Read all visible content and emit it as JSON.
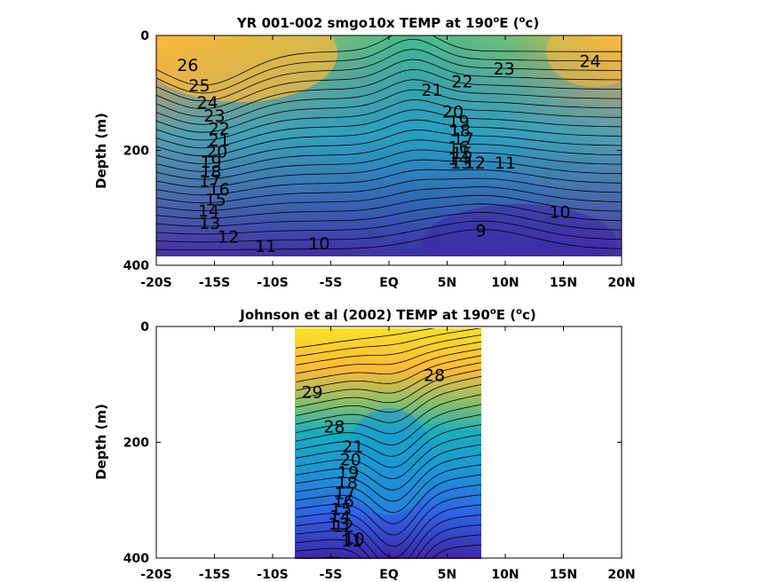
{
  "chart_data": [
    {
      "type": "contour",
      "title": "YR 001-002 smgo10x TEMP at 190",
      "title_unit": "E (",
      "title_unit_end": "c)",
      "ylabel": "Depth (m)",
      "xlim": [
        -20,
        20
      ],
      "ylim": [
        400,
        0
      ],
      "data_extent": {
        "x": [
          -20,
          20
        ],
        "depth": [
          0,
          385
        ]
      },
      "x_ticks": [
        -20,
        -15,
        -10,
        -5,
        0,
        5,
        10,
        15,
        20
      ],
      "x_tick_labels": [
        "-20S",
        "-15S",
        "-10S",
        "-5S",
        "EQ",
        "5N",
        "10N",
        "15N",
        "20N"
      ],
      "y_ticks": [
        0,
        200,
        400
      ],
      "y_tick_labels": [
        "0",
        "200",
        "400"
      ],
      "contour_interval": 1,
      "colormap": [
        "#3e26a8",
        "#2f64e5",
        "#1c96d4",
        "#1aaebc",
        "#42bb8f",
        "#8cbf6a",
        "#cfbb45",
        "#fdb938",
        "#f9e029"
      ],
      "color_range": [
        8,
        30
      ],
      "contour_labels": [
        {
          "value": "26",
          "x": -17.3,
          "depth": 62
        },
        {
          "value": "25",
          "x": -16.3,
          "depth": 97
        },
        {
          "value": "24",
          "x": -15.6,
          "depth": 127
        },
        {
          "value": "23",
          "x": -15.0,
          "depth": 150
        },
        {
          "value": "22",
          "x": -14.6,
          "depth": 172
        },
        {
          "value": "21",
          "x": -14.6,
          "depth": 192
        },
        {
          "value": "20",
          "x": -14.8,
          "depth": 212
        },
        {
          "value": "19",
          "x": -15.3,
          "depth": 230
        },
        {
          "value": "18",
          "x": -15.3,
          "depth": 247
        },
        {
          "value": "17",
          "x": -15.4,
          "depth": 263
        },
        {
          "value": "16",
          "x": -14.6,
          "depth": 278
        },
        {
          "value": "15",
          "x": -14.9,
          "depth": 296
        },
        {
          "value": "14",
          "x": -15.5,
          "depth": 315
        },
        {
          "value": "13",
          "x": -15.4,
          "depth": 337
        },
        {
          "value": "12",
          "x": -13.8,
          "depth": 361
        },
        {
          "value": "11",
          "x": -10.6,
          "depth": 377
        },
        {
          "value": "10",
          "x": -6.0,
          "depth": 372
        },
        {
          "value": "21",
          "x": 3.7,
          "depth": 105
        },
        {
          "value": "22",
          "x": 6.3,
          "depth": 90
        },
        {
          "value": "23",
          "x": 9.9,
          "depth": 68
        },
        {
          "value": "24",
          "x": 17.3,
          "depth": 55
        },
        {
          "value": "20",
          "x": 5.5,
          "depth": 143
        },
        {
          "value": "19",
          "x": 6.0,
          "depth": 160
        },
        {
          "value": "18",
          "x": 6.1,
          "depth": 175
        },
        {
          "value": "17",
          "x": 6.4,
          "depth": 190
        },
        {
          "value": "16",
          "x": 6.0,
          "depth": 205
        },
        {
          "value": "15",
          "x": 6.3,
          "depth": 215
        },
        {
          "value": "14",
          "x": 6.0,
          "depth": 225
        },
        {
          "value": "13",
          "x": 6.2,
          "depth": 232
        },
        {
          "value": "12",
          "x": 7.4,
          "depth": 232
        },
        {
          "value": "11",
          "x": 10.0,
          "depth": 232
        },
        {
          "value": "10",
          "x": 14.7,
          "depth": 317
        },
        {
          "value": "9",
          "x": 7.9,
          "depth": 350
        }
      ]
    },
    {
      "type": "contour",
      "title": "Johnson et al (2002) TEMP at 190",
      "title_unit": "E (",
      "title_unit_end": "c)",
      "ylabel": "Depth (m)",
      "xlim": [
        -20,
        20
      ],
      "ylim": [
        400,
        0
      ],
      "data_extent": {
        "x": [
          -8,
          8
        ],
        "depth": [
          0,
          400
        ]
      },
      "x_ticks": [
        -20,
        -15,
        -10,
        -5,
        0,
        5,
        10,
        15,
        20
      ],
      "x_tick_labels": [
        "-20S",
        "-15S",
        "-10S",
        "-5S",
        "EQ",
        "5N",
        "10N",
        "15N",
        "20N"
      ],
      "y_ticks": [
        0,
        200,
        400
      ],
      "y_tick_labels": [
        "0",
        "200",
        "400"
      ],
      "contour_interval": 1,
      "colormap": [
        "#3e26a8",
        "#2f64e5",
        "#1c96d4",
        "#1aaebc",
        "#42bb8f",
        "#8cbf6a",
        "#cfbb45",
        "#fdb938",
        "#f9e029"
      ],
      "color_range": [
        8,
        30
      ],
      "contour_labels": [
        {
          "value": "29",
          "x": -6.6,
          "depth": 123
        },
        {
          "value": "28",
          "x": -4.7,
          "depth": 183
        },
        {
          "value": "28",
          "x": 3.9,
          "depth": 94
        },
        {
          "value": "21",
          "x": -3.1,
          "depth": 218
        },
        {
          "value": "20",
          "x": -3.3,
          "depth": 240
        },
        {
          "value": "19",
          "x": -3.5,
          "depth": 262
        },
        {
          "value": "18",
          "x": -3.6,
          "depth": 280
        },
        {
          "value": "17",
          "x": -3.8,
          "depth": 298
        },
        {
          "value": "16",
          "x": -3.9,
          "depth": 312
        },
        {
          "value": "15",
          "x": -4.1,
          "depth": 326
        },
        {
          "value": "14",
          "x": -4.2,
          "depth": 338
        },
        {
          "value": "13",
          "x": -4.3,
          "depth": 351
        },
        {
          "value": "12",
          "x": -3.9,
          "depth": 355
        },
        {
          "value": "11",
          "x": -3.2,
          "depth": 380
        },
        {
          "value": "10",
          "x": -3.0,
          "depth": 377
        }
      ]
    }
  ]
}
